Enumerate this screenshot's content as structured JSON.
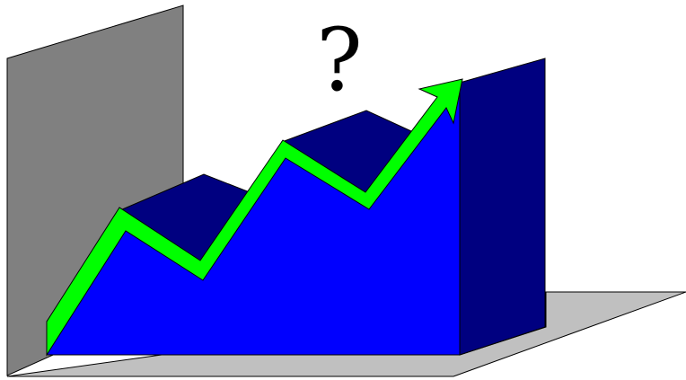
{
  "illustration": {
    "question_mark": "?",
    "colors": {
      "back_wall": "#808080",
      "floor": "#c0c0c0",
      "area_front": "#0000ff",
      "area_top_and_side": "#000080",
      "trend_arrow": "#00ff00",
      "outline": "#000000",
      "question_mark": "#000000"
    }
  }
}
